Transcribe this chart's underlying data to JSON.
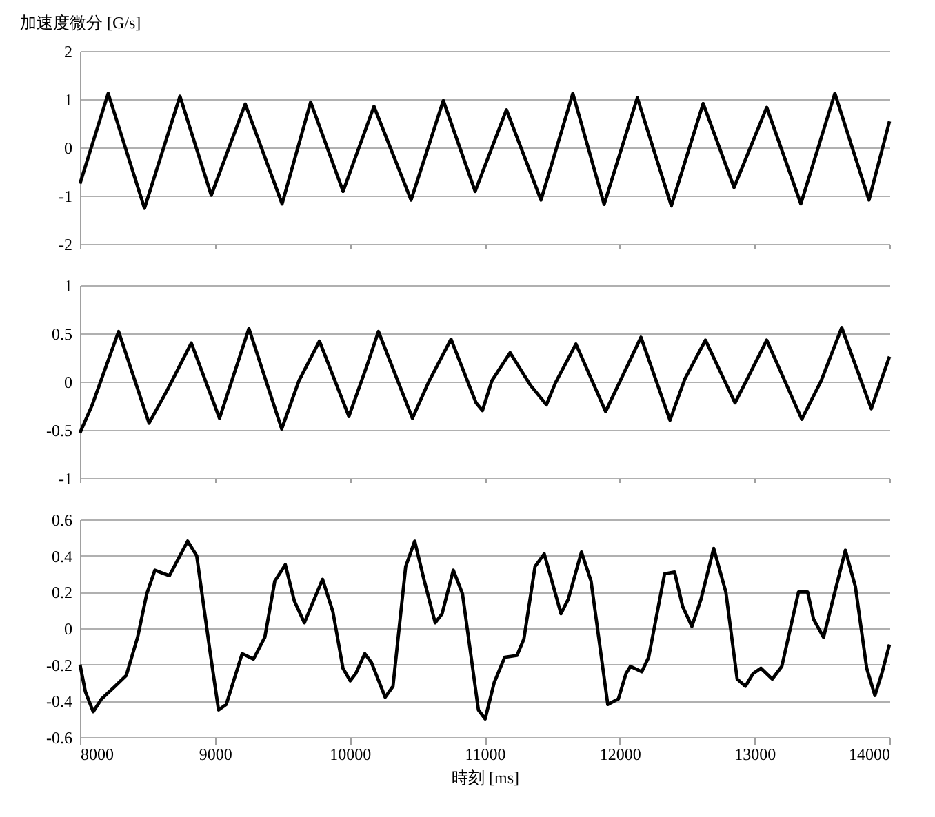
{
  "chart_data": [
    {
      "type": "line",
      "ylabel": "加速度微分 [G/s]",
      "xlim": [
        8000,
        14000
      ],
      "xticks": [
        8000,
        9000,
        10000,
        11000,
        12000,
        13000,
        14000
      ],
      "ylim": [
        -2,
        2
      ],
      "yticks": [
        -2,
        -1,
        0,
        1,
        2
      ],
      "grid": "y",
      "tick_labels": "y",
      "line_style": "solid",
      "marker": "none",
      "series": [
        {
          "color": "#000000",
          "x": [
            8000,
            8209,
            8478,
            8741,
            8973,
            9225,
            9498,
            9710,
            9950,
            10179,
            10454,
            10693,
            10929,
            11161,
            11417,
            11653,
            11885,
            12131,
            12383,
            12619,
            12848,
            13090,
            13343,
            13595,
            13848,
            14000
          ],
          "values": [
            -0.75,
            1.12,
            -1.26,
            1.06,
            -0.99,
            0.9,
            -1.17,
            0.94,
            -0.91,
            0.85,
            -1.09,
            0.97,
            -0.91,
            0.78,
            -1.09,
            1.12,
            -1.18,
            1.03,
            -1.21,
            0.91,
            -0.83,
            0.83,
            -1.17,
            1.12,
            -1.09,
            0.54
          ]
        }
      ]
    },
    {
      "type": "line",
      "xlim": [
        8000,
        14000
      ],
      "xticks": [
        8000,
        9000,
        10000,
        11000,
        12000,
        13000,
        14000
      ],
      "ylim": [
        -1,
        1
      ],
      "yticks": [
        -1,
        -0.5,
        0,
        0.5,
        1
      ],
      "grid": "y",
      "tick_labels": "y",
      "line_style": "solid",
      "marker": "none",
      "series": [
        {
          "color": "#000000",
          "x": [
            8000,
            8091,
            8286,
            8512,
            8646,
            8825,
            9034,
            9252,
            9495,
            9623,
            9775,
            9993,
            10128,
            10212,
            10464,
            10582,
            10750,
            10936,
            10983,
            11053,
            11188,
            11340,
            11457,
            11525,
            11676,
            11896,
            12158,
            12373,
            12484,
            12636,
            12855,
            12939,
            13090,
            13350,
            13494,
            13646,
            13865,
            14000
          ],
          "values": [
            -0.53,
            -0.24,
            0.52,
            -0.43,
            -0.09,
            0.4,
            -0.38,
            0.55,
            -0.49,
            0.01,
            0.42,
            -0.36,
            0.17,
            0.52,
            -0.38,
            -0.01,
            0.44,
            -0.22,
            -0.3,
            0.01,
            0.3,
            -0.04,
            -0.24,
            -0.01,
            0.39,
            -0.31,
            0.46,
            -0.4,
            0.03,
            0.43,
            -0.22,
            0.01,
            0.43,
            -0.39,
            0.01,
            0.56,
            -0.28,
            0.26
          ]
        }
      ]
    },
    {
      "type": "line",
      "xlabel": "時刻 [ms]",
      "xlim": [
        8000,
        14000
      ],
      "xticks": [
        8000,
        9000,
        10000,
        11000,
        12000,
        13000,
        14000
      ],
      "ylim": [
        -0.6,
        0.6
      ],
      "yticks": [
        -0.6,
        -0.4,
        -0.2,
        0,
        0.2,
        0.4,
        0.6
      ],
      "grid": "y",
      "line_style": "solid",
      "marker": "none",
      "series": [
        {
          "color": "#000000",
          "x": [
            8000,
            8040,
            8098,
            8159,
            8260,
            8343,
            8427,
            8495,
            8555,
            8663,
            8798,
            8865,
            8966,
            9027,
            9084,
            9202,
            9286,
            9370,
            9444,
            9522,
            9589,
            9663,
            9798,
            9875,
            9949,
            10003,
            10044,
            10111,
            10161,
            10262,
            10320,
            10414,
            10481,
            10549,
            10633,
            10684,
            10767,
            10835,
            10953,
            11003,
            11070,
            11148,
            11239,
            11290,
            11373,
            11441,
            11498,
            11565,
            11619,
            11717,
            11788,
            11912,
            11990,
            12047,
            12080,
            12164,
            12215,
            12333,
            12407,
            12467,
            12535,
            12603,
            12697,
            12787,
            12871,
            12932,
            12989,
            13047,
            13131,
            13202,
            13326,
            13393,
            13437,
            13511,
            13595,
            13673,
            13747,
            13831,
            13892,
            13943,
            14000
          ],
          "values": [
            -0.2,
            -0.35,
            -0.46,
            -0.39,
            -0.32,
            -0.26,
            -0.05,
            0.19,
            0.32,
            0.29,
            0.48,
            0.4,
            -0.14,
            -0.45,
            -0.42,
            -0.14,
            -0.17,
            -0.05,
            0.26,
            0.35,
            0.15,
            0.03,
            0.27,
            0.09,
            -0.22,
            -0.29,
            -0.25,
            -0.14,
            -0.19,
            -0.38,
            -0.32,
            0.34,
            0.48,
            0.27,
            0.03,
            0.08,
            0.32,
            0.19,
            -0.45,
            -0.5,
            -0.3,
            -0.16,
            -0.15,
            -0.06,
            0.34,
            0.41,
            0.26,
            0.08,
            0.16,
            0.42,
            0.26,
            -0.42,
            -0.39,
            -0.25,
            -0.21,
            -0.24,
            -0.16,
            0.3,
            0.31,
            0.12,
            0.01,
            0.16,
            0.44,
            0.2,
            -0.28,
            -0.32,
            -0.25,
            -0.22,
            -0.28,
            -0.21,
            0.2,
            0.2,
            0.05,
            -0.05,
            0.2,
            0.43,
            0.23,
            -0.22,
            -0.37,
            -0.25,
            -0.09
          ]
        }
      ]
    }
  ]
}
